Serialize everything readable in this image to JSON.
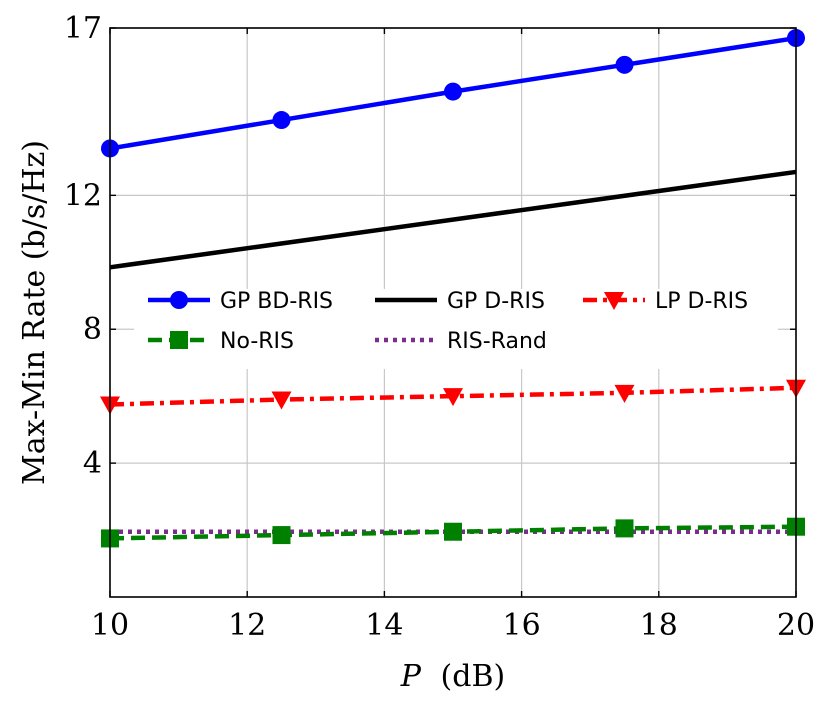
{
  "chart_data": {
    "type": "line",
    "xlabel_var": "P",
    "xlabel_unit": "(dB)",
    "ylabel": "Max-Min Rate (b/s/Hz)",
    "xlim": [
      10,
      20
    ],
    "ylim": [
      0,
      17
    ],
    "xticks": [
      10,
      12,
      14,
      16,
      18,
      20
    ],
    "yticks": [
      4,
      8,
      12,
      17
    ],
    "grid": true,
    "legend_position": "center-left",
    "series": [
      {
        "name": "GP BD-RIS",
        "color": "#0000ff",
        "marker": "circle",
        "dash": "solid",
        "x": [
          10,
          12.5,
          15,
          17.5,
          20
        ],
        "y": [
          13.4,
          14.25,
          15.1,
          15.9,
          16.7
        ]
      },
      {
        "name": "GP D-RIS",
        "color": "#000000",
        "marker": "none",
        "dash": "solid",
        "x": [
          10,
          20
        ],
        "y": [
          9.85,
          12.7
        ]
      },
      {
        "name": "LP D-RIS",
        "color": "#ff0000",
        "marker": "triangle-down",
        "dash": "dashdot",
        "x": [
          10,
          12.5,
          15,
          17.5,
          20
        ],
        "y": [
          5.75,
          5.9,
          6.0,
          6.1,
          6.25
        ]
      },
      {
        "name": "No-RIS",
        "color": "#008000",
        "marker": "square",
        "dash": "dashed",
        "x": [
          10,
          12.5,
          15,
          17.5,
          20
        ],
        "y": [
          1.75,
          1.85,
          1.95,
          2.05,
          2.1
        ]
      },
      {
        "name": "RIS-Rand",
        "color": "#7b2d8e",
        "marker": "none",
        "dash": "dotted",
        "x": [
          10,
          20
        ],
        "y": [
          1.95,
          1.95
        ]
      }
    ]
  }
}
